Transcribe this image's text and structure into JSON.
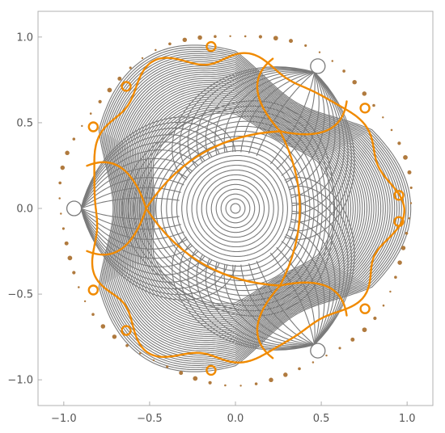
{
  "chart_data": {
    "type": "contour",
    "title": "",
    "xlabel": "",
    "ylabel": "",
    "xlim": [
      -1.15,
      1.15
    ],
    "ylim": [
      -1.15,
      1.15
    ],
    "x_ticks": [
      {
        "value": -1.0,
        "label": "−1.0"
      },
      {
        "value": -0.5,
        "label": "−0.5"
      },
      {
        "value": 0.0,
        "label": "0.0"
      },
      {
        "value": 0.5,
        "label": "0.5"
      },
      {
        "value": 1.0,
        "label": "1.0"
      }
    ],
    "y_ticks": [
      {
        "value": 1.0,
        "label": "1.0"
      },
      {
        "value": 0.5,
        "label": "0.5"
      },
      {
        "value": 0.0,
        "label": "0.0"
      },
      {
        "value": -0.5,
        "label": "−0.5"
      },
      {
        "value": -1.0,
        "label": "−1.0"
      }
    ],
    "grid": false,
    "center": [
      0.0,
      0.0
    ],
    "contour_color": "#7a7a7a",
    "separatrix_color": "#f08a00",
    "dot_color": "#b07a3e",
    "holes": [
      {
        "x": -0.94,
        "y": 0.0
      },
      {
        "x": 0.48,
        "y": 0.83
      },
      {
        "x": 0.48,
        "y": -0.83
      }
    ],
    "saddles": [
      {
        "x": -0.52,
        "y": 0.0
      },
      {
        "x": 0.26,
        "y": 0.45
      },
      {
        "x": 0.26,
        "y": -0.45
      }
    ]
  }
}
